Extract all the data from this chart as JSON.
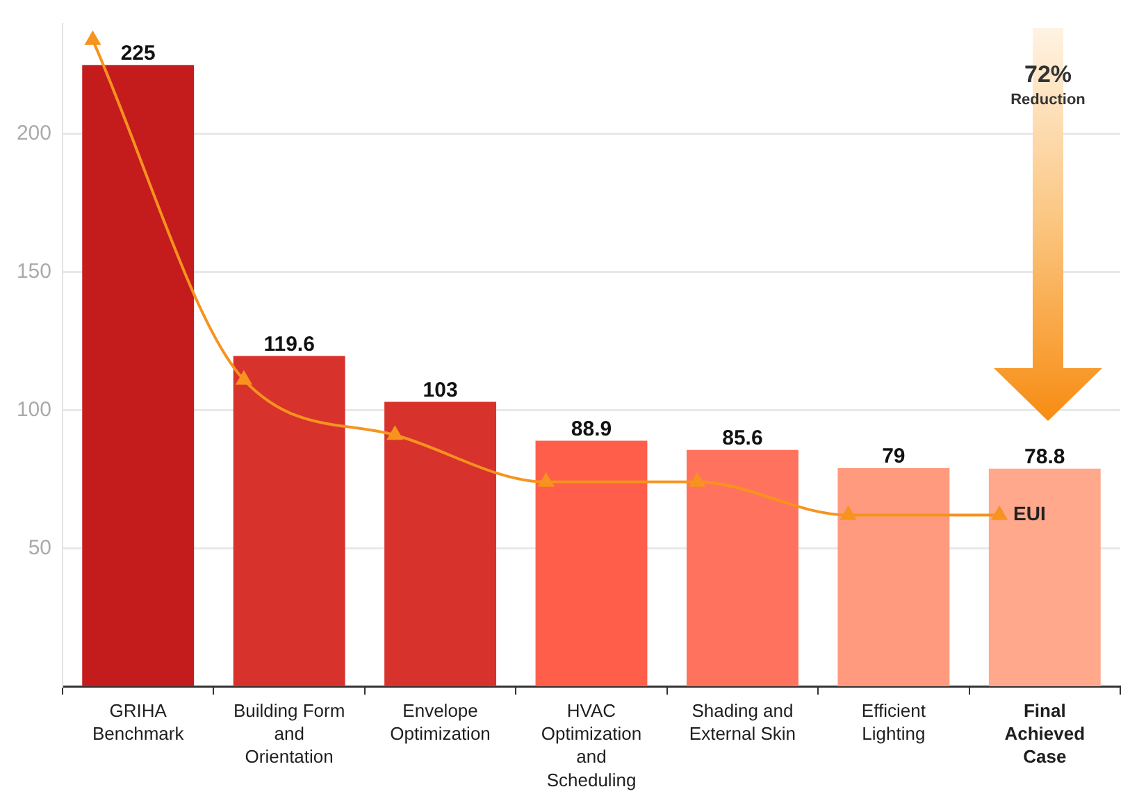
{
  "chart_data": {
    "type": "bar",
    "categories": [
      "GRIHA Benchmark",
      "Building Form and Orientation",
      "Envelope Optimization",
      "HVAC Optimization and Scheduling",
      "Shading and External Skin",
      "Efficient Lighting",
      "Final Achieved Case"
    ],
    "series": [
      {
        "colors": [
          "#c41b1c",
          "#d8322d",
          "#d8322d",
          "#ff5e4b",
          "#ff735e",
          "#ff9a7f",
          "#ffa88c"
        ],
        "values": [
          225,
          119.6,
          103,
          88.9,
          85.6,
          79,
          78.8
        ],
        "value_labels": [
          "225",
          "119.6",
          "103",
          "88.9",
          "85.6",
          "79",
          "78.8"
        ]
      },
      {
        "type": "line",
        "name": "EUI",
        "color": "#f7931e",
        "marker": "triangle",
        "values": [
          234,
          111,
          91,
          74,
          74,
          62,
          62
        ]
      }
    ],
    "ylim": [
      0,
      240
    ],
    "yticks": [
      50,
      100,
      150,
      200
    ],
    "grid": "y",
    "legend": false,
    "annotations": [
      "72%",
      "Reduction"
    ]
  }
}
